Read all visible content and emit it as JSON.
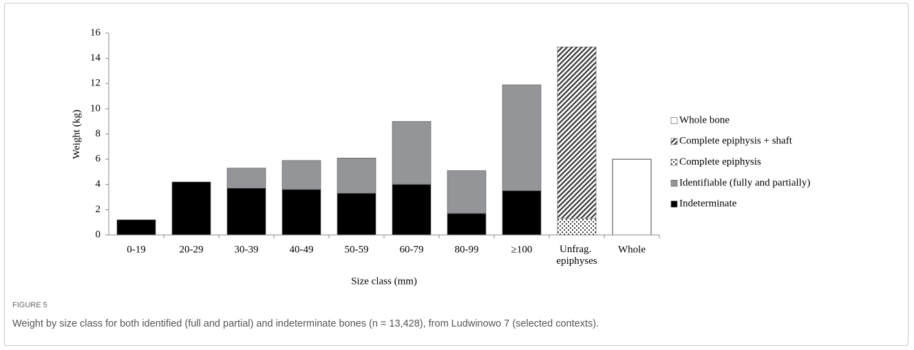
{
  "chart_data": {
    "type": "stacked_bar",
    "caption_label": "FIGURE 5",
    "caption": "Weight by size class for both identified (full and partial) and indeterminate bones (n = 13,428), from Ludwinowo 7 (selected contexts).",
    "x_label": "Size class (mm)",
    "y_label": "Weight (kg)",
    "categories": [
      "0-19",
      "20-29",
      "30-39",
      "40-49",
      "50-59",
      "60-79",
      "80-99",
      "≥100",
      "Unfrag. epiphyses",
      "Whole"
    ],
    "series": [
      {
        "name": "Indeterminate",
        "color": "#000000",
        "values": [
          1.2,
          4.2,
          3.7,
          3.6,
          3.3,
          4.0,
          1.7,
          3.5,
          null,
          null
        ]
      },
      {
        "name": "Identifiable (fully and partially)",
        "color": "#939598",
        "values": [
          null,
          null,
          1.6,
          2.3,
          2.8,
          5.0,
          3.4,
          8.4,
          null,
          null
        ]
      },
      {
        "name": "Complete epiphysis",
        "color": "#333333",
        "pattern": "dotted",
        "values": [
          null,
          null,
          null,
          null,
          null,
          null,
          null,
          null,
          1.3,
          null
        ]
      },
      {
        "name": "Complete epiphysis + shaft",
        "color": "#333333",
        "pattern": "diagonal",
        "values": [
          null,
          null,
          null,
          null,
          null,
          null,
          null,
          null,
          13.6,
          null
        ]
      },
      {
        "name": "Whole bone",
        "color": "#ffffff",
        "values": [
          null,
          null,
          null,
          null,
          null,
          null,
          null,
          null,
          null,
          6.0
        ]
      }
    ],
    "ylim": [
      0,
      16
    ],
    "yticks": [
      0,
      2,
      4,
      6,
      8,
      10,
      12,
      14,
      16
    ],
    "legend": "right"
  }
}
